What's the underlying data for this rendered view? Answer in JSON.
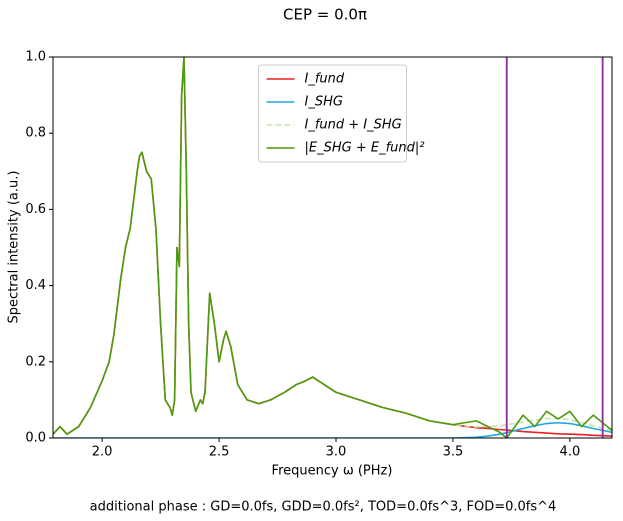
{
  "chart_data": {
    "type": "line",
    "title": "CEP = 0.0π",
    "xlabel": "Frequency ω (PHz)",
    "ylabel": "Spectral intensity (a.u.)",
    "annotation": "additional phase : GD=0.0fs, GDD=0.0fs², TOD=0.0fs^3, FOD=0.0fs^4",
    "xlim": [
      1.79,
      4.18
    ],
    "ylim": [
      0,
      1
    ],
    "xticks": [
      {
        "value": 2,
        "label": "2.0"
      },
      2.5,
      {
        "value": 3,
        "label": "3.0"
      },
      3.5,
      {
        "value": 4,
        "label": "4.0"
      }
    ],
    "yticks": [
      {
        "value": 0,
        "label": "0.0"
      },
      0.2,
      0.4,
      0.6,
      0.8,
      {
        "value": 1,
        "label": "1.0"
      }
    ],
    "legend": "upper center",
    "vlines": [
      3.73,
      4.14
    ],
    "vline_color": "#8b2a9b",
    "x": [
      1.79,
      1.82,
      1.85,
      1.9,
      1.95,
      2.0,
      2.03,
      2.05,
      2.08,
      2.1,
      2.12,
      2.15,
      2.16,
      2.17,
      2.19,
      2.21,
      2.23,
      2.25,
      2.27,
      2.29,
      2.3,
      2.31,
      2.32,
      2.33,
      2.34,
      2.35,
      2.36,
      2.37,
      2.38,
      2.4,
      2.42,
      2.43,
      2.44,
      2.46,
      2.48,
      2.5,
      2.52,
      2.53,
      2.55,
      2.58,
      2.62,
      2.67,
      2.72,
      2.78,
      2.83,
      2.87,
      2.9,
      2.95,
      3.0,
      3.05,
      3.1,
      3.15,
      3.2,
      3.3,
      3.4,
      3.5,
      3.55,
      3.6,
      3.65,
      3.7,
      3.73,
      3.8,
      3.85,
      3.9,
      3.95,
      4.0,
      4.05,
      4.1,
      4.14,
      4.18
    ],
    "series": [
      {
        "name": "I_fund",
        "color": "#e8231f",
        "dash": false,
        "values": [
          0.01,
          0.03,
          0.01,
          0.03,
          0.08,
          0.15,
          0.2,
          0.27,
          0.42,
          0.5,
          0.55,
          0.7,
          0.74,
          0.75,
          0.7,
          0.68,
          0.55,
          0.3,
          0.1,
          0.08,
          0.06,
          0.1,
          0.5,
          0.45,
          0.9,
          1.0,
          0.7,
          0.3,
          0.12,
          0.07,
          0.1,
          0.09,
          0.12,
          0.38,
          0.3,
          0.2,
          0.26,
          0.28,
          0.24,
          0.14,
          0.1,
          0.09,
          0.1,
          0.12,
          0.14,
          0.15,
          0.16,
          0.14,
          0.12,
          0.11,
          0.1,
          0.09,
          0.08,
          0.065,
          0.045,
          0.035,
          0.031,
          0.027,
          0.025,
          0.022,
          0.021,
          0.017,
          0.015,
          0.013,
          0.011,
          0.01,
          0.009,
          0.007,
          0.006,
          0.005
        ]
      },
      {
        "name": "I_SHG",
        "color": "#1ea7e4",
        "dash": false,
        "values": [
          0,
          0,
          0,
          0,
          0,
          0,
          0,
          0,
          0,
          0,
          0,
          0,
          0,
          0,
          0,
          0,
          0,
          0,
          0,
          0,
          0,
          0,
          0,
          0,
          0,
          0,
          0,
          0,
          0,
          0,
          0,
          0,
          0,
          0,
          0,
          0,
          0,
          0,
          0,
          0,
          0,
          0,
          0,
          0,
          0,
          0,
          0,
          0,
          0,
          0,
          0,
          0,
          0,
          0,
          0,
          0,
          0.001,
          0.002,
          0.005,
          0.01,
          0.014,
          0.025,
          0.032,
          0.038,
          0.04,
          0.038,
          0.032,
          0.025,
          0.02,
          0.015
        ]
      },
      {
        "name": "I_fund + I_SHG",
        "color": "#c5e5a6",
        "dash": true,
        "values": [
          0.01,
          0.03,
          0.01,
          0.03,
          0.08,
          0.15,
          0.2,
          0.27,
          0.42,
          0.5,
          0.55,
          0.7,
          0.74,
          0.75,
          0.7,
          0.68,
          0.55,
          0.3,
          0.1,
          0.08,
          0.06,
          0.1,
          0.5,
          0.45,
          0.9,
          1.0,
          0.7,
          0.3,
          0.12,
          0.07,
          0.1,
          0.09,
          0.12,
          0.38,
          0.3,
          0.2,
          0.26,
          0.28,
          0.24,
          0.14,
          0.1,
          0.09,
          0.1,
          0.12,
          0.14,
          0.15,
          0.16,
          0.14,
          0.12,
          0.11,
          0.1,
          0.09,
          0.08,
          0.065,
          0.045,
          0.035,
          0.032,
          0.029,
          0.03,
          0.032,
          0.035,
          0.042,
          0.047,
          0.051,
          0.051,
          0.048,
          0.041,
          0.032,
          0.026,
          0.02
        ]
      },
      {
        "name": "|E_SHG + E_fund|²",
        "color": "#4c9a0e",
        "dash": false,
        "values": [
          0.01,
          0.03,
          0.01,
          0.03,
          0.08,
          0.15,
          0.2,
          0.27,
          0.42,
          0.5,
          0.55,
          0.7,
          0.74,
          0.75,
          0.7,
          0.68,
          0.55,
          0.3,
          0.1,
          0.08,
          0.06,
          0.1,
          0.5,
          0.45,
          0.9,
          1.0,
          0.7,
          0.3,
          0.12,
          0.07,
          0.1,
          0.09,
          0.12,
          0.38,
          0.3,
          0.2,
          0.26,
          0.28,
          0.24,
          0.14,
          0.1,
          0.09,
          0.1,
          0.12,
          0.14,
          0.15,
          0.16,
          0.14,
          0.12,
          0.11,
          0.1,
          0.09,
          0.08,
          0.065,
          0.045,
          0.035,
          0.04,
          0.045,
          0.03,
          0.015,
          0.0,
          0.06,
          0.03,
          0.07,
          0.05,
          0.07,
          0.03,
          0.06,
          0.04,
          0.02
        ]
      }
    ]
  }
}
